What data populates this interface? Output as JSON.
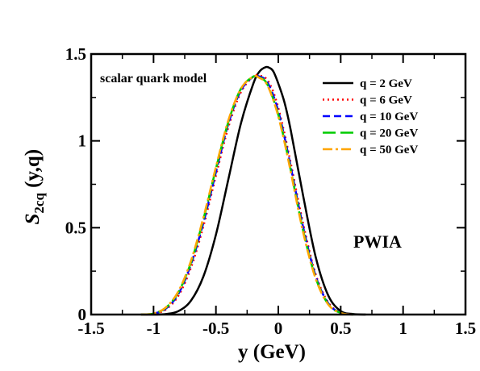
{
  "chart_data": {
    "type": "line",
    "xlabel_main": "y (GeV)",
    "ylabel_main": "S",
    "ylabel_sub": "2cq",
    "ylabel_args": " (y,q)",
    "xlim": [
      -1.5,
      1.5
    ],
    "ylim": [
      0,
      1.5
    ],
    "xticks": [
      -1.5,
      -1,
      -0.5,
      0,
      0.5,
      1,
      1.5
    ],
    "xtick_labels": [
      "-1.5",
      "-1",
      "-0.5",
      "0",
      "0.5",
      "1",
      "1.5"
    ],
    "yticks": [
      0,
      0.5,
      1,
      1.5
    ],
    "ytick_labels": [
      "0",
      "0.5",
      "1",
      "1.5"
    ],
    "annotations": {
      "model": "scalar quark model",
      "approx": "PWIA"
    },
    "legend_position": "top-right",
    "grid": false,
    "series": [
      {
        "name": "q = 2 GeV",
        "color": "#000000",
        "dash": "solid",
        "x": [
          -1.1,
          -1.0,
          -0.9,
          -0.8,
          -0.7,
          -0.6,
          -0.5,
          -0.4,
          -0.3,
          -0.2,
          -0.15,
          -0.1,
          -0.07,
          -0.04,
          0,
          0.05,
          0.1,
          0.2,
          0.3,
          0.4,
          0.5,
          0.6,
          0.7
        ],
        "y": [
          0.0,
          0.0,
          0.003,
          0.02,
          0.08,
          0.22,
          0.46,
          0.78,
          1.1,
          1.33,
          1.4,
          1.425,
          1.42,
          1.4,
          1.33,
          1.22,
          1.06,
          0.68,
          0.33,
          0.11,
          0.02,
          0.003,
          0.0
        ]
      },
      {
        "name": "q = 6 GeV",
        "color": "#ff0000",
        "dash": "dotted",
        "x": [
          -1.1,
          -1.0,
          -0.9,
          -0.8,
          -0.7,
          -0.6,
          -0.5,
          -0.4,
          -0.3,
          -0.2,
          -0.15,
          -0.1,
          -0.05,
          0,
          0.05,
          0.1,
          0.2,
          0.3,
          0.4,
          0.5,
          0.6
        ],
        "y": [
          0.0,
          0.004,
          0.03,
          0.11,
          0.27,
          0.51,
          0.8,
          1.08,
          1.28,
          1.37,
          1.375,
          1.36,
          1.3,
          1.19,
          1.04,
          0.87,
          0.52,
          0.23,
          0.07,
          0.01,
          0.0
        ]
      },
      {
        "name": "q = 10 GeV",
        "color": "#0000ff",
        "dash": "dashed",
        "x": [
          -1.1,
          -1.0,
          -0.9,
          -0.8,
          -0.7,
          -0.6,
          -0.5,
          -0.4,
          -0.3,
          -0.2,
          -0.15,
          -0.1,
          -0.05,
          0,
          0.05,
          0.1,
          0.2,
          0.3,
          0.4,
          0.5,
          0.6
        ],
        "y": [
          0.0,
          0.005,
          0.035,
          0.12,
          0.29,
          0.53,
          0.82,
          1.1,
          1.29,
          1.37,
          1.37,
          1.35,
          1.28,
          1.17,
          1.02,
          0.85,
          0.5,
          0.22,
          0.065,
          0.01,
          0.0
        ]
      },
      {
        "name": "q = 20 GeV",
        "color": "#00cc00",
        "dash": "longdash",
        "x": [
          -1.1,
          -1.0,
          -0.9,
          -0.8,
          -0.7,
          -0.6,
          -0.5,
          -0.4,
          -0.3,
          -0.2,
          -0.15,
          -0.1,
          -0.05,
          0,
          0.05,
          0.1,
          0.2,
          0.3,
          0.4,
          0.5,
          0.6
        ],
        "y": [
          0.0,
          0.006,
          0.04,
          0.13,
          0.3,
          0.55,
          0.84,
          1.11,
          1.3,
          1.37,
          1.365,
          1.34,
          1.26,
          1.15,
          1.0,
          0.83,
          0.48,
          0.21,
          0.06,
          0.009,
          0.0
        ]
      },
      {
        "name": "q = 50 GeV",
        "color": "#ffa500",
        "dash": "dashdot",
        "x": [
          -1.1,
          -1.0,
          -0.9,
          -0.8,
          -0.7,
          -0.6,
          -0.5,
          -0.4,
          -0.3,
          -0.2,
          -0.15,
          -0.1,
          -0.05,
          0,
          0.05,
          0.1,
          0.2,
          0.3,
          0.4,
          0.5,
          0.6
        ],
        "y": [
          0.0,
          0.006,
          0.042,
          0.135,
          0.31,
          0.56,
          0.85,
          1.12,
          1.3,
          1.37,
          1.362,
          1.335,
          1.255,
          1.14,
          0.99,
          0.82,
          0.47,
          0.205,
          0.058,
          0.009,
          0.0
        ]
      }
    ]
  }
}
